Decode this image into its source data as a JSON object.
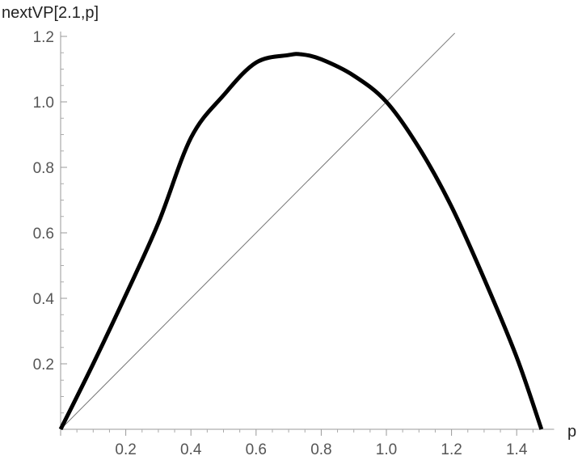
{
  "chart_data": {
    "type": "line",
    "xlabel": "p",
    "ylabel": "nextVP[2.1,p]",
    "xlim": [
      0,
      1.5
    ],
    "ylim": [
      0,
      1.2
    ],
    "x_ticks": [
      {
        "value": 0.2,
        "label": "0.2"
      },
      {
        "value": 0.4,
        "label": "0.4"
      },
      {
        "value": 0.6,
        "label": "0.6"
      },
      {
        "value": 0.8,
        "label": "0.8"
      },
      {
        "value": 1.0,
        "label": "1.0"
      },
      {
        "value": 1.2,
        "label": "1.2"
      },
      {
        "value": 1.4,
        "label": "1.4"
      }
    ],
    "y_ticks": [
      {
        "value": 0.2,
        "label": "0.2"
      },
      {
        "value": 0.4,
        "label": "0.4"
      },
      {
        "value": 0.6,
        "label": "0.6"
      },
      {
        "value": 0.8,
        "label": "0.8"
      },
      {
        "value": 1.0,
        "label": "1.0"
      },
      {
        "value": 1.2,
        "label": "1.2"
      }
    ],
    "grid": false,
    "series": [
      {
        "style": "thick",
        "color": "#000000",
        "x": [
          0,
          0.1,
          0.2,
          0.3,
          0.4,
          0.5,
          0.6,
          0.7,
          0.74,
          0.8,
          0.9,
          1.0,
          1.1,
          1.2,
          1.3,
          1.4,
          1.476
        ],
        "y": [
          0,
          0.2,
          0.41,
          0.63,
          0.89,
          1.02,
          1.12,
          1.143,
          1.145,
          1.13,
          1.08,
          1.0,
          0.86,
          0.68,
          0.46,
          0.22,
          0
        ]
      },
      {
        "style": "thin",
        "color": "#777777",
        "x": [
          0,
          1.21
        ],
        "y": [
          0,
          1.21
        ]
      }
    ]
  }
}
